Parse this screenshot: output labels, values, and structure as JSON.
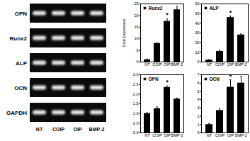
{
  "gel": {
    "bands": [
      "OPN",
      "Runx2",
      "ALP",
      "OCN",
      "GAPDH"
    ],
    "lanes": [
      "NT",
      "COIP",
      "OIP",
      "BMP-2"
    ]
  },
  "chart_data": [
    {
      "type": "bar",
      "title": "Runx2",
      "ylabel": "Fold Expression",
      "categories": [
        "NT",
        "COIP",
        "OIP",
        "BMP-2"
      ],
      "values": [
        1,
        8,
        17.5,
        22.5
      ],
      "errors": [
        0.3,
        0.3,
        1.2,
        1.5
      ],
      "color": "#000000",
      "ylim": [
        0,
        25
      ],
      "yticks": [
        0,
        5,
        10,
        15,
        20,
        25
      ],
      "annotations": [
        {
          "category": "OIP",
          "text": "*"
        }
      ]
    },
    {
      "type": "bar",
      "title": "ALP",
      "categories": [
        "NT",
        "COIP",
        "OIP",
        "BMP-2"
      ],
      "values": [
        2,
        11,
        46,
        28
      ],
      "errors": [
        0.5,
        1,
        1.5,
        1
      ],
      "color": "#000000",
      "ylim": [
        0,
        60
      ],
      "yticks": [
        0,
        10,
        20,
        30,
        40,
        50,
        60
      ],
      "annotations": [
        {
          "category": "OIP",
          "text": "*"
        }
      ]
    },
    {
      "type": "bar",
      "title": "OPN",
      "categories": [
        "NT",
        "COIP",
        "OIP",
        "BMP-2"
      ],
      "values": [
        1.0,
        1.25,
        2.35,
        1.75
      ],
      "errors": [
        0.05,
        0.1,
        0.08,
        0.05
      ],
      "color": "#000000",
      "ylim": [
        0,
        3
      ],
      "yticks": [
        {
          "value": 0,
          "label": "0.0"
        },
        0.5,
        {
          "value": 1,
          "label": "1.0"
        },
        1.5,
        {
          "value": 2,
          "label": "2.0"
        },
        2.5,
        {
          "value": 3,
          "label": "3.0"
        }
      ],
      "annotations": [
        {
          "category": "OIP",
          "text": "*"
        }
      ]
    },
    {
      "type": "bar",
      "title": "OCN",
      "categories": [
        "NT",
        "COIP",
        "OIP",
        "BMP-2"
      ],
      "values": [
        1,
        2.7,
        5.5,
        6.0
      ],
      "errors": [
        0.1,
        0.2,
        0.9,
        0.8
      ],
      "color": "#000000",
      "ylim": [
        0,
        7
      ],
      "yticks": [
        0,
        1,
        2,
        3,
        4,
        5,
        6,
        7
      ],
      "annotations": [
        {
          "category": "OIP",
          "text": "*"
        }
      ]
    }
  ]
}
